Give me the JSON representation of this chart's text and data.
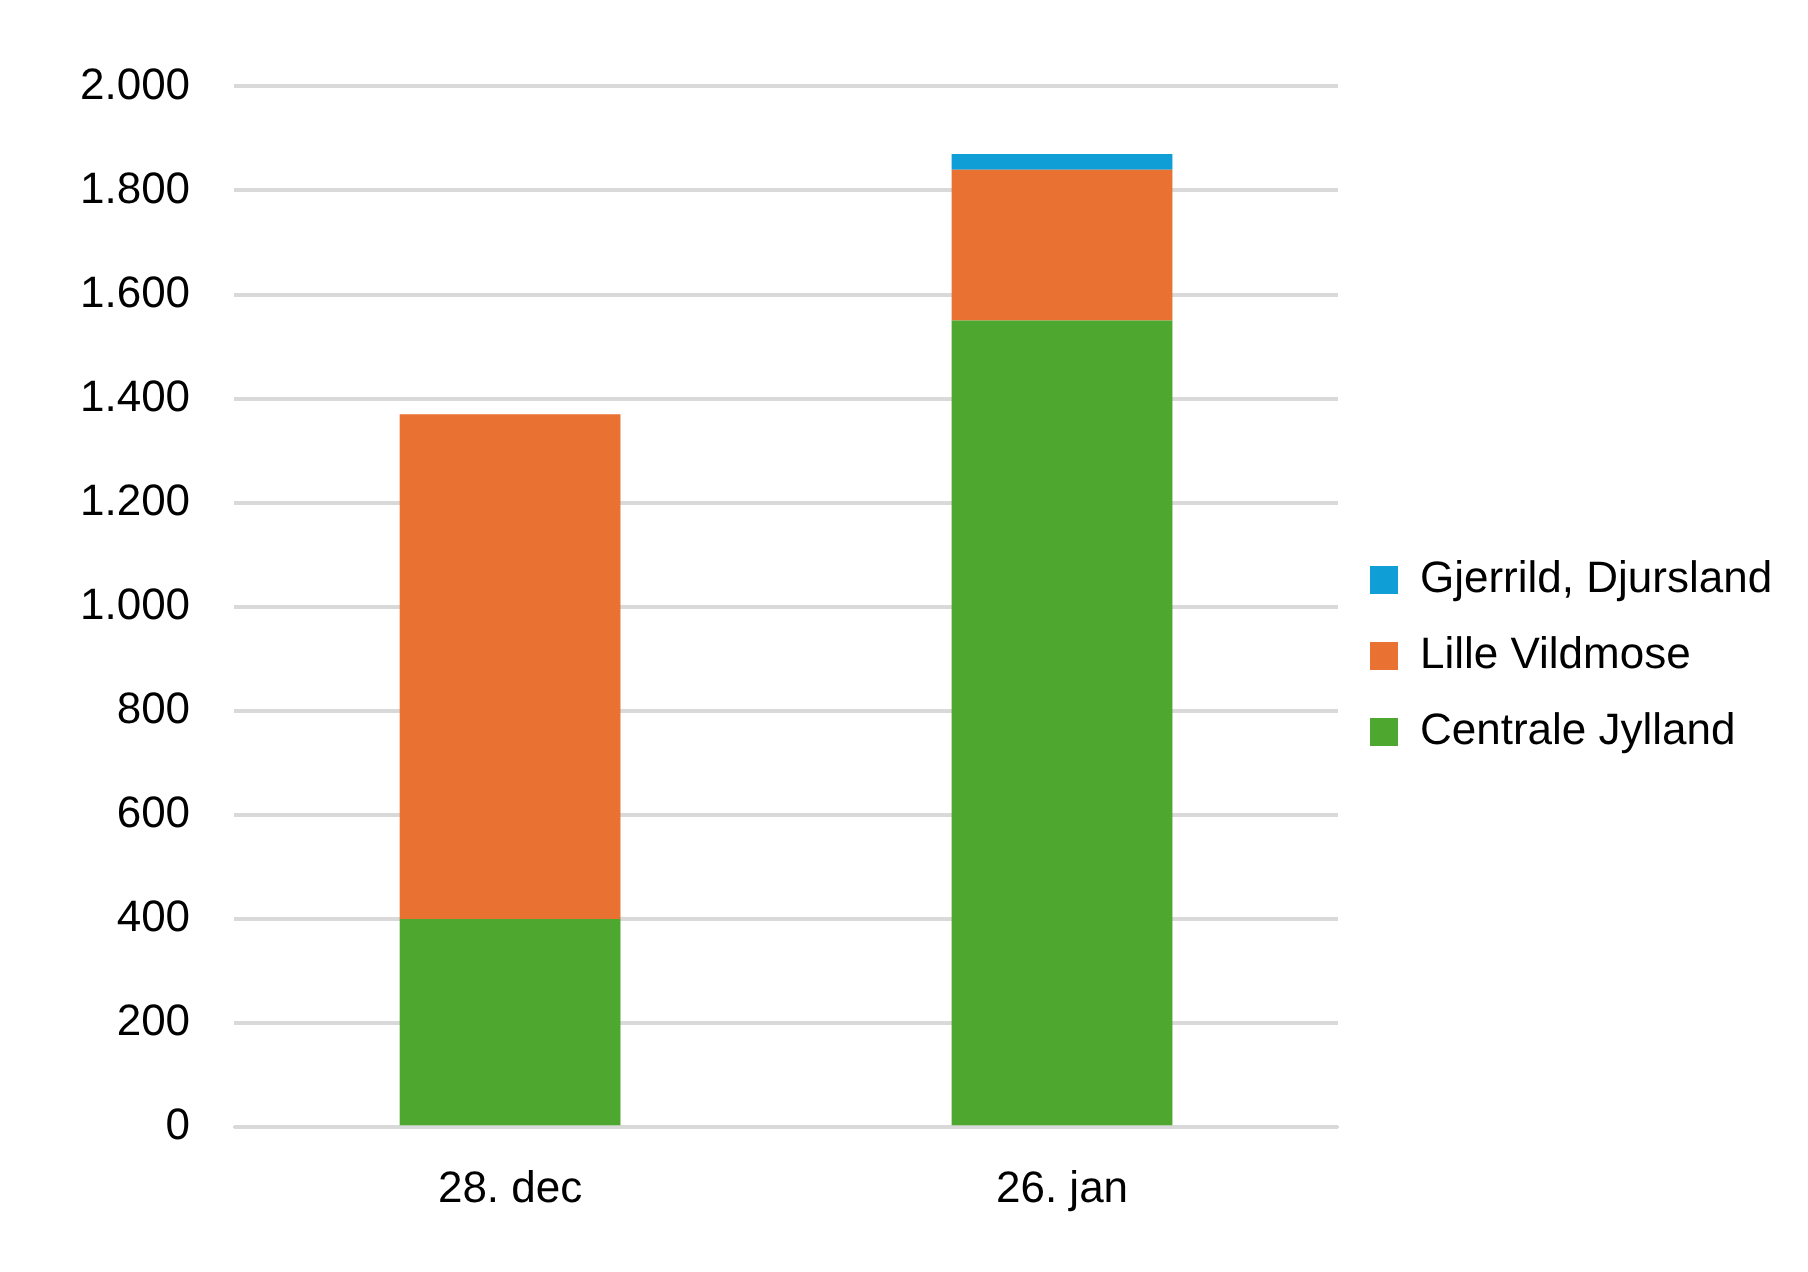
{
  "chart_data": {
    "type": "bar",
    "stacked": true,
    "categories": [
      "28. dec",
      "26. jan"
    ],
    "series": [
      {
        "name": "Centrale Jylland",
        "color": "#4ea72e",
        "values": [
          400,
          1550
        ]
      },
      {
        "name": "Lille Vildmose",
        "color": "#e97132",
        "values": [
          970,
          290
        ]
      },
      {
        "name": "Gjerrild, Djursland",
        "color": "#0f9ed5",
        "values": [
          null,
          30
        ]
      }
    ],
    "ylim": [
      0,
      2000
    ],
    "yticks": [
      0,
      200,
      400,
      600,
      800,
      {
        "value": 1000,
        "label": "1.000"
      },
      {
        "value": 1200,
        "label": "1.200"
      },
      {
        "value": 1400,
        "label": "1.400"
      },
      {
        "value": 1600,
        "label": "1.600"
      },
      {
        "value": 1800,
        "label": "1.800"
      },
      {
        "value": 2000,
        "label": "2.000"
      }
    ],
    "grid": "y",
    "legend": "right"
  }
}
